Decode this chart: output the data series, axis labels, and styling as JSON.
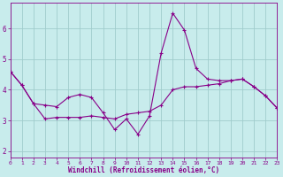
{
  "xlabel": "Windchill (Refroidissement éolien,°C)",
  "bg_color": "#c8ecec",
  "grid_color": "#a0cccc",
  "line_color": "#880088",
  "line1_x": [
    0,
    1,
    2,
    3,
    4,
    5,
    6,
    7,
    8,
    9,
    10,
    11,
    12,
    13,
    14,
    15,
    16,
    17,
    18,
    19,
    20,
    21,
    22,
    23
  ],
  "line1_y": [
    4.6,
    4.15,
    3.55,
    3.05,
    3.1,
    3.1,
    3.1,
    3.15,
    3.1,
    3.05,
    3.2,
    3.25,
    3.3,
    3.5,
    4.0,
    4.1,
    4.1,
    4.15,
    4.2,
    4.3,
    4.35,
    4.1,
    3.8,
    3.4
  ],
  "line2_x": [
    0,
    1,
    2,
    3,
    4,
    5,
    6,
    7,
    8,
    9,
    10,
    11,
    12,
    13,
    14,
    15,
    16,
    17,
    18,
    19,
    20,
    21,
    22,
    23
  ],
  "line2_y": [
    4.6,
    4.15,
    3.55,
    3.5,
    3.45,
    3.75,
    3.85,
    3.75,
    3.25,
    2.7,
    3.05,
    2.55,
    3.15,
    5.2,
    6.5,
    5.95,
    4.7,
    4.35,
    4.3,
    4.3,
    4.35,
    4.1,
    3.8,
    3.4
  ],
  "xlim": [
    0,
    23
  ],
  "ylim": [
    1.8,
    6.85
  ],
  "yticks": [
    2,
    3,
    4,
    5,
    6
  ],
  "xticks": [
    0,
    1,
    2,
    3,
    4,
    5,
    6,
    7,
    8,
    9,
    10,
    11,
    12,
    13,
    14,
    15,
    16,
    17,
    18,
    19,
    20,
    21,
    22,
    23
  ],
  "marker": "+",
  "markersize": 3,
  "linewidth": 0.8
}
